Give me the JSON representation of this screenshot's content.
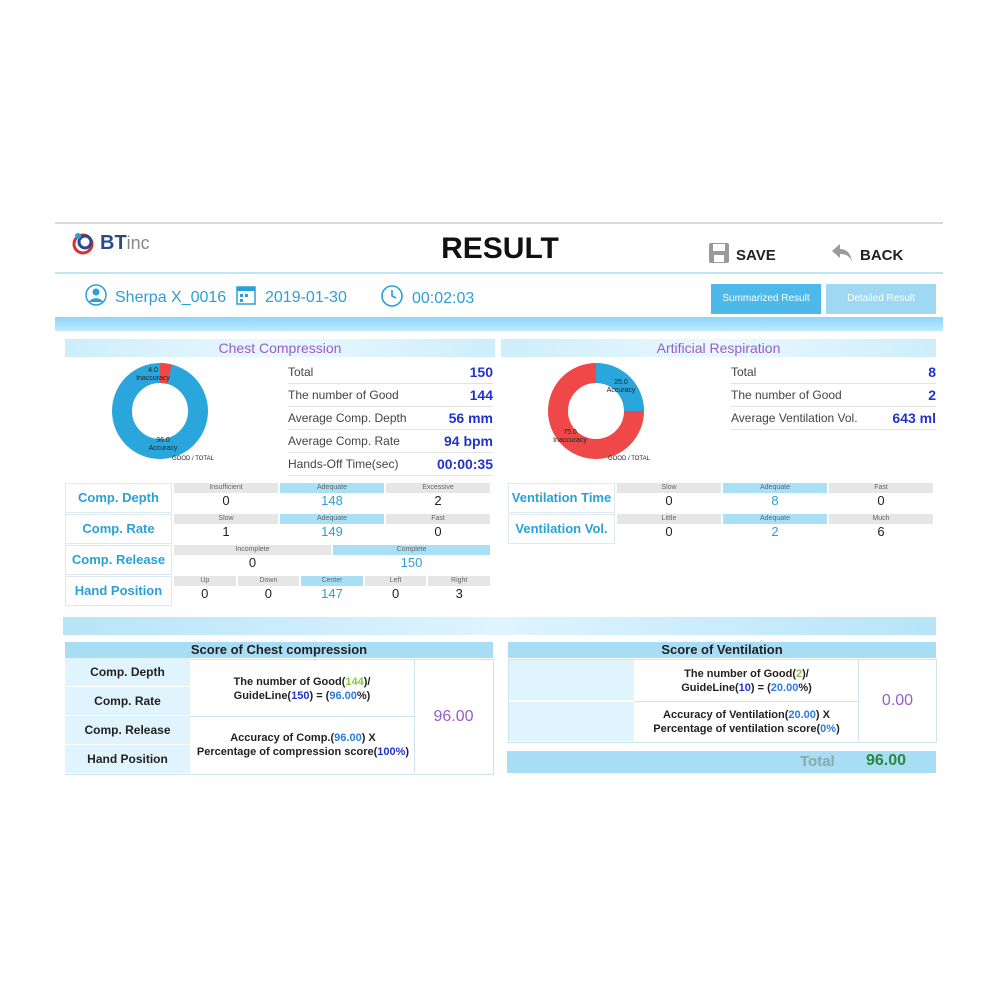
{
  "header": {
    "logo_text": "BT",
    "logo_suffix": "inc",
    "title": "RESULT",
    "save_label": "SAVE",
    "back_label": "BACK"
  },
  "info": {
    "user": "Sherpa X_0016",
    "date": "2019-01-30",
    "duration": "00:02:03",
    "tab_summary": "Summarized Result",
    "tab_detail": "Detailed Result"
  },
  "chest": {
    "title": "Chest Compression",
    "donut": {
      "inaccuracy_value": "4.0",
      "inaccuracy_label": "Inaccuracy",
      "accuracy_value": "96.0",
      "accuracy_label": "Accuracy",
      "caption": "GOOD / TOTAL",
      "accuracy_fraction": 0.96
    },
    "stats": [
      {
        "label": "Total",
        "value": "150"
      },
      {
        "label": "The number of Good",
        "value": "144"
      },
      {
        "label": "Average Comp. Depth",
        "value": "56 mm"
      },
      {
        "label": "Average Comp. Rate",
        "value": "94 bpm"
      },
      {
        "label": "Hands-Off Time(sec)",
        "value": "00:00:35"
      }
    ],
    "metrics": {
      "depth": {
        "label": "Comp. Depth",
        "cols": [
          {
            "h": "Insufficient",
            "v": "0"
          },
          {
            "h": "Adequate",
            "v": "148"
          },
          {
            "h": "Excessive",
            "v": "2"
          }
        ]
      },
      "rate": {
        "label": "Comp. Rate",
        "cols": [
          {
            "h": "Slow",
            "v": "1"
          },
          {
            "h": "Adequate",
            "v": "149"
          },
          {
            "h": "Fast",
            "v": "0"
          }
        ]
      },
      "release": {
        "label": "Comp. Release",
        "cols": [
          {
            "h": "Incomplete",
            "v": "0"
          },
          {
            "h": "Complete",
            "v": "150"
          }
        ]
      },
      "hand": {
        "label": "Hand Position",
        "cols": [
          {
            "h": "Up",
            "v": "0"
          },
          {
            "h": "Down",
            "v": "0"
          },
          {
            "h": "Center",
            "v": "147"
          },
          {
            "h": "Left",
            "v": "0"
          },
          {
            "h": "Right",
            "v": "3"
          }
        ]
      }
    }
  },
  "resp": {
    "title": "Artificial Respiration",
    "donut": {
      "accuracy_value": "25.0",
      "accuracy_label": "Accuracy",
      "inaccuracy_value": "75.0",
      "inaccuracy_label": "Inaccuracy",
      "caption": "GOOD / TOTAL",
      "accuracy_fraction": 0.25
    },
    "stats": [
      {
        "label": "Total",
        "value": "8"
      },
      {
        "label": "The number of Good",
        "value": "2"
      },
      {
        "label": "Average Ventilation Vol.",
        "value": "643 ml"
      }
    ],
    "metrics": {
      "time": {
        "label": "Ventilation Time",
        "cols": [
          {
            "h": "Slow",
            "v": "0"
          },
          {
            "h": "Adequate",
            "v": "8"
          },
          {
            "h": "Fast",
            "v": "0"
          }
        ]
      },
      "vol": {
        "label": "Ventilation Vol.",
        "cols": [
          {
            "h": "Little",
            "v": "0"
          },
          {
            "h": "Adequate",
            "v": "2"
          },
          {
            "h": "Much",
            "v": "6"
          }
        ]
      }
    }
  },
  "score_chest": {
    "title": "Score of Chest compression",
    "rows": [
      "Comp. Depth",
      "Comp. Rate",
      "Comp. Release",
      "Hand Position"
    ],
    "f1_a": "The number of Good(",
    "f1_good": "144",
    "f1_b": ")/",
    "f1_c": "GuideLine(",
    "f1_guide": "150",
    "f1_d": ") = (",
    "f1_pct": "96.00",
    "f1_e": "%)",
    "f2_a": "Accuracy of Comp.(",
    "f2_acc": "96.00",
    "f2_b": ") X",
    "f2_c": "Percentage of compression score(",
    "f2_pct": "100%",
    "f2_d": ")",
    "score": "96.00"
  },
  "score_vent": {
    "title": "Score of Ventilation",
    "f1_a": "The number of Good(",
    "f1_good": "2",
    "f1_b": ")/",
    "f1_c": "GuideLine(",
    "f1_guide": "10",
    "f1_d": ") = (",
    "f1_pct": "20.00",
    "f1_e": "%)",
    "f2_a": "Accuracy of Ventilation(",
    "f2_acc": "20.00",
    "f2_b": ") X",
    "f2_c": "Percentage of ventilation score(",
    "f2_pct": "0%",
    "f2_d": ")",
    "score": "0.00"
  },
  "total": {
    "label": "Total",
    "value": "96.00"
  },
  "colors": {
    "accent": "#2aa0d8",
    "donut_good": "#2aa6dc",
    "donut_bad": "#f04848",
    "purple": "#9a5cc8"
  }
}
